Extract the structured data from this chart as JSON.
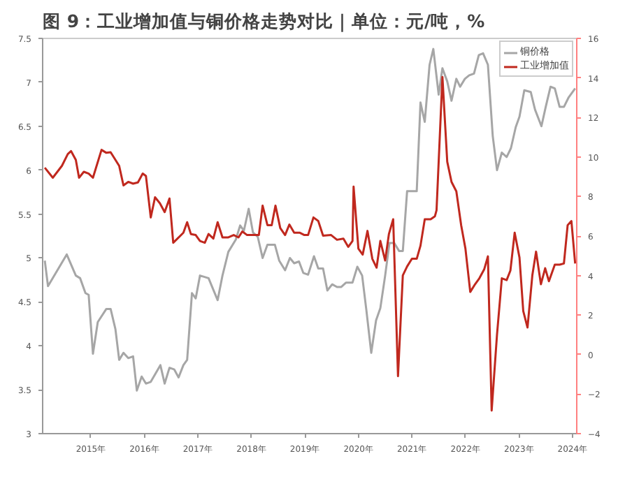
{
  "chart_data": {
    "type": "line",
    "title": "图 9：工业增加值与铜价格走势对比｜单位：元/吨，%",
    "xlim": [
      2014.1,
      2024.08
    ],
    "xticks": [
      {
        "value": 2015,
        "label": "2015年"
      },
      {
        "value": 2016,
        "label": "2016年"
      },
      {
        "value": 2017,
        "label": "2017年"
      },
      {
        "value": 2018,
        "label": "2018年"
      },
      {
        "value": 2019,
        "label": "2019年"
      },
      {
        "value": 2020,
        "label": "2020年"
      },
      {
        "value": 2021,
        "label": "2021年"
      },
      {
        "value": 2022,
        "label": "2022年"
      },
      {
        "value": 2023,
        "label": "2023年"
      },
      {
        "value": 2024,
        "label": "2024年"
      }
    ],
    "ylim": [
      3,
      7.5
    ],
    "yticks": [
      3,
      3.5,
      4,
      4.5,
      5,
      5.5,
      6,
      6.5,
      7,
      7.5
    ],
    "y2lim": [
      -4,
      16
    ],
    "y2ticks": [
      -4,
      -2,
      0,
      2,
      4,
      6,
      8,
      10,
      12,
      14,
      16
    ],
    "legend": "top right",
    "grid": false,
    "line_style": "solid",
    "marker": "none",
    "series": [
      {
        "name": "铜价格",
        "color": "#a6a6a6",
        "x": [
          2014.14,
          2014.2,
          2014.55,
          2014.72,
          2014.8,
          2014.9,
          2014.96,
          2015.04,
          2015.13,
          2015.29,
          2015.37,
          2015.46,
          2015.53,
          2015.61,
          2015.7,
          2015.79,
          2015.86,
          2015.95,
          2016.03,
          2016.12,
          2016.3,
          2016.38,
          2016.47,
          2016.56,
          2016.64,
          2016.73,
          2016.8,
          2016.89,
          2016.96,
          2017.04,
          2017.2,
          2017.37,
          2017.46,
          2017.57,
          2017.71,
          2017.79,
          2017.86,
          2017.95,
          2018.03,
          2018.12,
          2018.21,
          2018.3,
          2018.44,
          2018.52,
          2018.63,
          2018.72,
          2018.8,
          2018.89,
          2018.97,
          2019.06,
          2019.17,
          2019.25,
          2019.34,
          2019.42,
          2019.51,
          2019.6,
          2019.68,
          2019.77,
          2019.89,
          2019.98,
          2020.07,
          2020.15,
          2020.24,
          2020.33,
          2020.41,
          2020.5,
          2020.58,
          2020.67,
          2020.76,
          2020.83,
          2020.91,
          2021.02,
          2021.09,
          2021.16,
          2021.24,
          2021.33,
          2021.4,
          2021.5,
          2021.57,
          2021.66,
          2021.74,
          2021.83,
          2021.9,
          2021.99,
          2022.07,
          2022.16,
          2022.25,
          2022.33,
          2022.42,
          2022.51,
          2022.59,
          2022.68,
          2022.77,
          2022.85,
          2022.94,
          2023.01,
          2023.1,
          2023.22,
          2023.3,
          2023.42,
          2023.5,
          2023.59,
          2023.67,
          2023.76,
          2023.84,
          2023.93,
          2024.05
        ],
        "values": [
          4.97,
          4.68,
          5.04,
          4.8,
          4.77,
          4.6,
          4.58,
          3.91,
          4.27,
          4.42,
          4.42,
          4.19,
          3.84,
          3.92,
          3.86,
          3.88,
          3.49,
          3.65,
          3.57,
          3.59,
          3.78,
          3.57,
          3.75,
          3.73,
          3.64,
          3.78,
          3.84,
          4.6,
          4.54,
          4.8,
          4.77,
          4.52,
          4.8,
          5.07,
          5.21,
          5.37,
          5.31,
          5.56,
          5.29,
          5.24,
          5.0,
          5.15,
          5.15,
          4.97,
          4.86,
          5.0,
          4.94,
          4.96,
          4.83,
          4.81,
          5.02,
          4.88,
          4.88,
          4.63,
          4.7,
          4.67,
          4.67,
          4.72,
          4.72,
          4.9,
          4.8,
          4.4,
          3.92,
          4.29,
          4.43,
          4.8,
          5.17,
          5.17,
          5.08,
          5.08,
          5.76,
          5.76,
          5.76,
          6.77,
          6.55,
          7.2,
          7.38,
          6.86,
          7.16,
          7.01,
          6.79,
          7.04,
          6.95,
          7.04,
          7.08,
          7.1,
          7.31,
          7.33,
          7.2,
          6.39,
          6.0,
          6.2,
          6.15,
          6.25,
          6.49,
          6.61,
          6.91,
          6.89,
          6.69,
          6.5,
          6.72,
          6.95,
          6.93,
          6.72,
          6.72,
          6.83,
          6.93
        ]
      },
      {
        "name": "工业增加值",
        "color": "#c0281e",
        "axis": "y2",
        "x": [
          2014.14,
          2014.29,
          2014.46,
          2014.57,
          2014.63,
          2014.72,
          2014.78,
          2014.87,
          2014.96,
          2015.04,
          2015.2,
          2015.29,
          2015.37,
          2015.44,
          2015.53,
          2015.61,
          2015.7,
          2015.79,
          2015.88,
          2015.97,
          2016.03,
          2016.12,
          2016.2,
          2016.29,
          2016.38,
          2016.47,
          2016.54,
          2016.63,
          2016.73,
          2016.8,
          2016.87,
          2016.96,
          2017.04,
          2017.13,
          2017.2,
          2017.29,
          2017.37,
          2017.46,
          2017.57,
          2017.67,
          2017.76,
          2017.83,
          2017.92,
          2018.03,
          2018.14,
          2018.21,
          2018.3,
          2018.38,
          2018.45,
          2018.54,
          2018.63,
          2018.71,
          2018.8,
          2018.9,
          2018.99,
          2019.06,
          2019.16,
          2019.25,
          2019.34,
          2019.49,
          2019.6,
          2019.72,
          2019.81,
          2019.89,
          2019.91,
          2020.0,
          2020.08,
          2020.17,
          2020.26,
          2020.34,
          2020.41,
          2020.5,
          2020.57,
          2020.65,
          2020.74,
          2020.83,
          2020.91,
          2021.0,
          2021.09,
          2021.16,
          2021.24,
          2021.35,
          2021.43,
          2021.46,
          2021.57,
          2021.66,
          2021.74,
          2021.83,
          2021.92,
          2022.0,
          2022.09,
          2022.18,
          2022.26,
          2022.35,
          2022.42,
          2022.49,
          2022.59,
          2022.68,
          2022.77,
          2022.84,
          2022.92,
          2023.01,
          2023.08,
          2023.16,
          2023.25,
          2023.32,
          2023.41,
          2023.49,
          2023.56,
          2023.67,
          2023.76,
          2023.84,
          2023.91,
          2023.98,
          2024.05
        ],
        "values": [
          9.46,
          8.95,
          9.55,
          10.15,
          10.3,
          9.85,
          8.95,
          9.25,
          9.16,
          8.95,
          10.36,
          10.21,
          10.24,
          9.94,
          9.55,
          8.56,
          8.74,
          8.65,
          8.71,
          9.16,
          9.04,
          6.94,
          7.96,
          7.66,
          7.21,
          7.9,
          5.66,
          5.9,
          6.17,
          6.7,
          6.1,
          6.05,
          5.75,
          5.66,
          6.1,
          5.87,
          6.7,
          5.93,
          5.93,
          6.05,
          5.93,
          6.23,
          6.05,
          6.05,
          6.05,
          7.54,
          6.55,
          6.55,
          7.54,
          6.4,
          6.05,
          6.58,
          6.17,
          6.17,
          6.05,
          6.05,
          6.94,
          6.76,
          6.02,
          6.05,
          5.81,
          5.87,
          5.45,
          5.75,
          8.5,
          5.36,
          5.06,
          6.26,
          4.85,
          4.4,
          5.75,
          4.76,
          6.1,
          6.85,
          -1.09,
          4.01,
          4.46,
          4.85,
          4.85,
          5.51,
          6.85,
          6.85,
          7.0,
          7.3,
          14.05,
          9.76,
          8.74,
          8.26,
          6.55,
          5.36,
          3.17,
          3.56,
          3.86,
          4.31,
          4.97,
          -2.83,
          1.01,
          3.86,
          3.77,
          4.25,
          6.17,
          4.91,
          2.21,
          1.37,
          4.01,
          5.21,
          3.56,
          4.37,
          3.71,
          4.55,
          4.55,
          4.61,
          6.55,
          6.76,
          4.61
        ]
      }
    ]
  }
}
